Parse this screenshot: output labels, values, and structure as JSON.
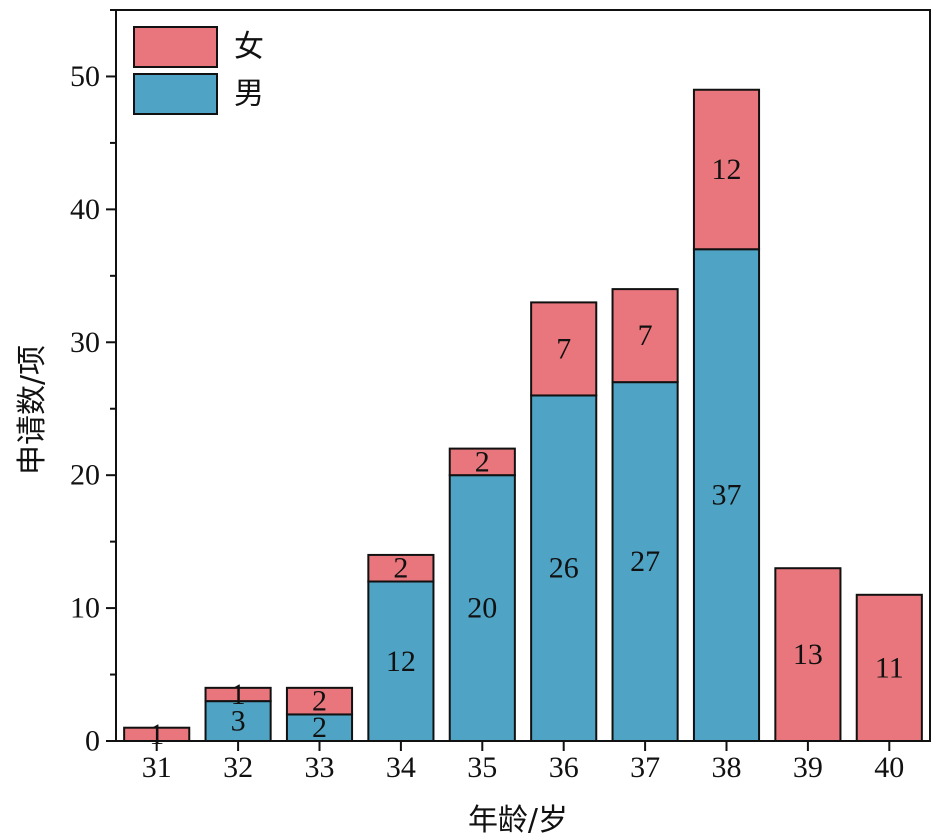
{
  "chart_data": {
    "type": "bar",
    "stacked": true,
    "title": "",
    "xlabel": "年龄/岁",
    "ylabel": "申请数/项",
    "ylim": [
      0,
      55
    ],
    "yticks": [
      0,
      10,
      20,
      30,
      40,
      50
    ],
    "categories": [
      "31",
      "32",
      "33",
      "34",
      "35",
      "36",
      "37",
      "38",
      "39",
      "40"
    ],
    "series": [
      {
        "name": "男",
        "color": "#4fa3c4",
        "values": [
          0,
          3,
          2,
          12,
          20,
          26,
          27,
          37,
          0,
          0
        ]
      },
      {
        "name": "女",
        "color": "#e8767c",
        "values": [
          1,
          1,
          2,
          2,
          2,
          7,
          7,
          12,
          13,
          11
        ]
      }
    ],
    "legend": {
      "placement": "top-left",
      "entries": [
        "女",
        "男"
      ]
    }
  }
}
